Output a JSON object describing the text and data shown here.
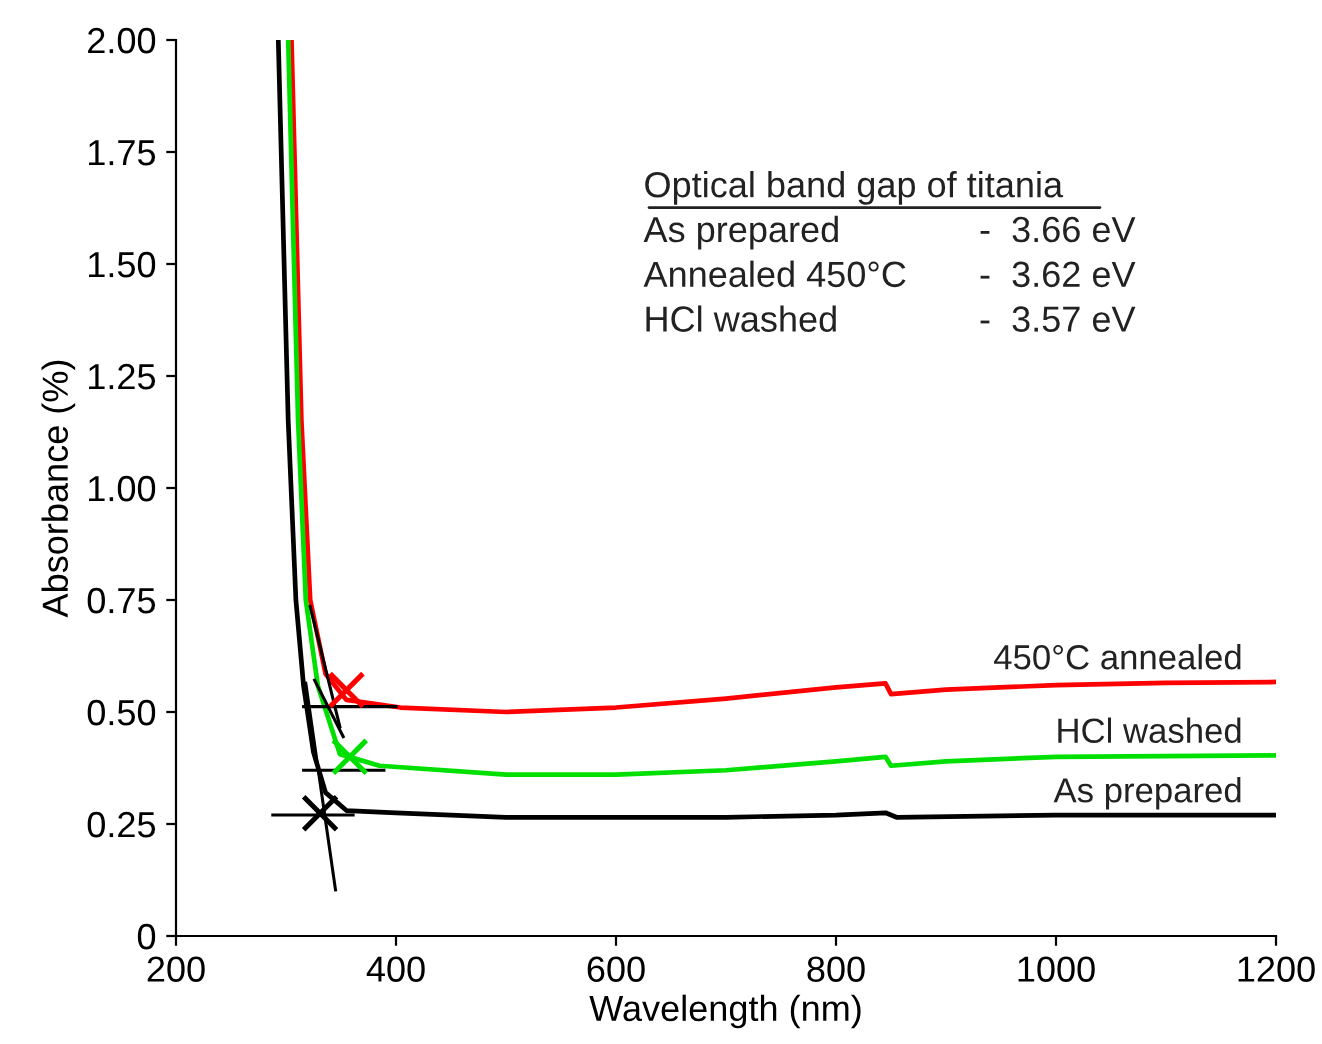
{
  "chart_data": {
    "type": "line",
    "xlabel": "Wavelength (nm)",
    "ylabel": "Absorbance (%)",
    "xlim": [
      200,
      1200
    ],
    "xticks": [
      200,
      400,
      600,
      800,
      1000,
      1200
    ],
    "ylim": [
      0,
      2.0
    ],
    "yticks": [
      {
        "value": 0,
        "label": "0"
      },
      {
        "value": 0.25,
        "label": "0.25"
      },
      {
        "value": 0.5,
        "label": "0.50"
      },
      {
        "value": 0.75,
        "label": "0.75"
      },
      {
        "value": 1.0,
        "label": "1.00"
      },
      {
        "value": 1.25,
        "label": "1.25"
      },
      {
        "value": 1.5,
        "label": "1.50"
      },
      {
        "value": 1.75,
        "label": "1.75"
      },
      {
        "value": 2.0,
        "label": "2.00"
      }
    ],
    "grid": false,
    "legend": false,
    "annotations": [
      "Optical band gap of titania",
      "As prepared - 3.66 eV",
      "Annealed 450°C - 3.62 eV",
      "HCl washed - 3.57 eV"
    ],
    "series": [
      {
        "name": "450°C annealed",
        "color": "#ff0000",
        "x": [
          305,
          314,
          322,
          336,
          355,
          404,
          500,
          600,
          700,
          800,
          845,
          850,
          900,
          1000,
          1100,
          1200
        ],
        "values": [
          2.0,
          1.15,
          0.75,
          0.585,
          0.527,
          0.51,
          0.5,
          0.51,
          0.53,
          0.555,
          0.564,
          0.54,
          0.55,
          0.56,
          0.565,
          0.567
        ]
      },
      {
        "name": "HCl washed",
        "color": "#00e000",
        "x": [
          302,
          311,
          318,
          329,
          349,
          385,
          500,
          600,
          700,
          800,
          845,
          850,
          900,
          1000,
          1200
        ],
        "values": [
          2.0,
          1.15,
          0.75,
          0.558,
          0.406,
          0.38,
          0.36,
          0.36,
          0.37,
          0.39,
          0.4,
          0.38,
          0.39,
          0.4,
          0.403
        ]
      },
      {
        "name": "As prepared",
        "color": "#000000",
        "x": [
          293,
          302,
          309,
          316,
          325,
          336,
          355,
          400,
          500,
          600,
          700,
          800,
          845,
          855,
          1000,
          1200
        ],
        "values": [
          2.0,
          1.15,
          0.75,
          0.558,
          0.41,
          0.32,
          0.28,
          0.275,
          0.265,
          0.265,
          0.265,
          0.27,
          0.275,
          0.265,
          0.27,
          0.27
        ]
      },
      {
        "color": "#000000",
        "x": [
          316,
          400
        ],
        "values": [
          0.512,
          0.512
        ]
      },
      {
        "color": "#000000",
        "x": [
          316,
          389
        ],
        "values": [
          0.37,
          0.37
        ]
      },
      {
        "color": "#000000",
        "x": [
          288,
          361
        ],
        "values": [
          0.27,
          0.27
        ]
      },
      {
        "color": "#000000",
        "x": [
          318,
          345
        ],
        "values": [
          0.564,
          0.103
        ]
      },
      {
        "color": "#000000",
        "x": [
          326,
          352
        ],
        "values": [
          0.571,
          0.445
        ]
      },
      {
        "color": "#000000",
        "x": [
          322,
          349
        ],
        "values": [
          0.735,
          0.467
        ]
      },
      {
        "type": "scatter",
        "marker": "cross",
        "color": "#ff0000",
        "x": [
          355
        ],
        "values": [
          0.549
        ]
      },
      {
        "type": "scatter",
        "marker": "cross",
        "color": "#00e000",
        "x": [
          358
        ],
        "values": [
          0.4
        ]
      },
      {
        "type": "scatter",
        "marker": "cross",
        "color": "#000000",
        "x": [
          331
        ],
        "values": [
          0.274
        ]
      }
    ]
  }
}
